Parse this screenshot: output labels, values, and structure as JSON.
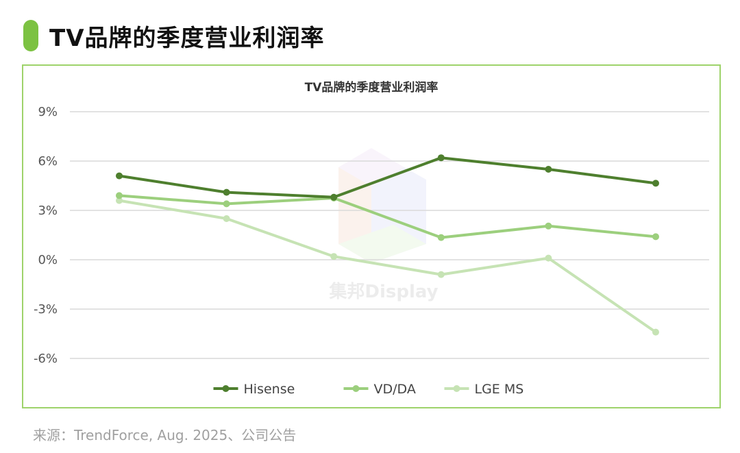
{
  "page_title": "TV品牌的季度营业利润率",
  "accent_color": "#7cc242",
  "source": "来源：TrendForce, Aug. 2025、公司公告",
  "watermark": "集邦Display",
  "chart_data": {
    "type": "line",
    "title": "TV品牌的季度营业利润率",
    "xlabel": "",
    "ylabel": "",
    "x": [
      1,
      2,
      3,
      4,
      5,
      6
    ],
    "ylim": [
      -6,
      9
    ],
    "yticks": [
      9,
      6,
      3,
      0,
      -3,
      -6
    ],
    "ytick_labels": [
      "9%",
      "6%",
      "3%",
      "0%",
      "-3%",
      "-6%"
    ],
    "grid": true,
    "legend_position": "bottom",
    "series": [
      {
        "name": "Hisense",
        "color": "#4e7f2e",
        "values": [
          5.1,
          4.1,
          3.8,
          6.2,
          5.5,
          4.65
        ]
      },
      {
        "name": "VD/DA",
        "color": "#9ccf7d",
        "values": [
          3.9,
          3.4,
          3.75,
          1.35,
          2.05,
          1.4
        ]
      },
      {
        "name": "LGE MS",
        "color": "#c6e3b4",
        "values": [
          3.6,
          2.5,
          0.2,
          -0.9,
          0.1,
          -4.4
        ]
      }
    ]
  }
}
